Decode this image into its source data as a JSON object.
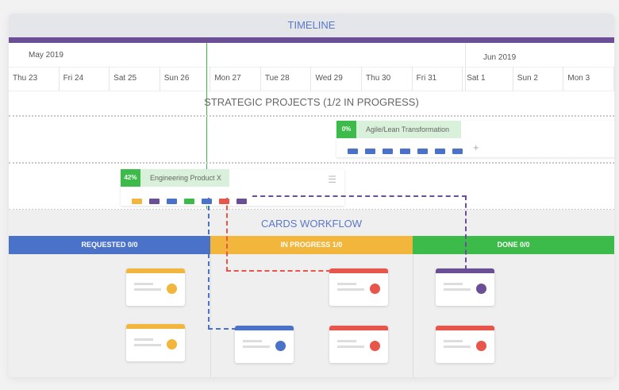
{
  "header": {
    "title": "TIMELINE"
  },
  "months": [
    "May 2019",
    "Jun 2019"
  ],
  "days": [
    "Thu 23",
    "Fri 24",
    "Sat 25",
    "Sun 26",
    "Mon 27",
    "Tue 28",
    "Wed 29",
    "Thu 30",
    "Fri 31",
    "Sat 1",
    "Sun 2",
    "Mon 3"
  ],
  "strategic_title": "STRATEGIC PROJECTS (1/2 IN PROGRESS)",
  "projects": [
    {
      "percent": "0%",
      "title": "Agile/Lean Transformation",
      "tasks": [
        "#4a72c8",
        "#4a72c8",
        "#4a72c8",
        "#4a72c8",
        "#4a72c8",
        "#4a72c8",
        "#4a72c8"
      ],
      "progress": 0
    },
    {
      "percent": "42%",
      "title": "Engineering Product X",
      "tasks": [
        "#f3b63c",
        "#6a4f96",
        "#4a72c8",
        "#3dbb4a",
        "#4a72c8",
        "#e8554a",
        "#6a4f96"
      ],
      "progress": 42
    }
  ],
  "workflow_title": "CARDS WORKFLOW",
  "columns": [
    {
      "label": "REQUESTED 0/0",
      "color": "#4a72c8"
    },
    {
      "label": "IN PROGRESS 1/0",
      "color": "#f3b63c"
    },
    {
      "label": "DONE 0/0",
      "color": "#3dbb4a"
    }
  ],
  "colors": {
    "purple": "#6a4f96",
    "blue": "#4a72c8",
    "orange": "#f3b63c",
    "red": "#e8554a",
    "green": "#3dbb4a"
  }
}
